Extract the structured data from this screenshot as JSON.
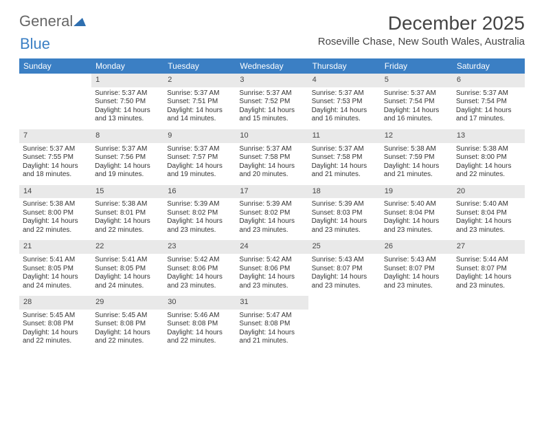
{
  "brand": {
    "part1": "General",
    "part2": "Blue",
    "triangle_color": "#2f6fb0"
  },
  "title": "December 2025",
  "location": "Roseville Chase, New South Wales, Australia",
  "colors": {
    "header_bg": "#3b7fc4",
    "header_fg": "#ffffff",
    "daynum_bg": "#e9e9e9"
  },
  "weekdays": [
    "Sunday",
    "Monday",
    "Tuesday",
    "Wednesday",
    "Thursday",
    "Friday",
    "Saturday"
  ],
  "weeks": [
    [
      {
        "n": "",
        "lines": []
      },
      {
        "n": "1",
        "lines": [
          "Sunrise: 5:37 AM",
          "Sunset: 7:50 PM",
          "Daylight: 14 hours",
          "and 13 minutes."
        ]
      },
      {
        "n": "2",
        "lines": [
          "Sunrise: 5:37 AM",
          "Sunset: 7:51 PM",
          "Daylight: 14 hours",
          "and 14 minutes."
        ]
      },
      {
        "n": "3",
        "lines": [
          "Sunrise: 5:37 AM",
          "Sunset: 7:52 PM",
          "Daylight: 14 hours",
          "and 15 minutes."
        ]
      },
      {
        "n": "4",
        "lines": [
          "Sunrise: 5:37 AM",
          "Sunset: 7:53 PM",
          "Daylight: 14 hours",
          "and 16 minutes."
        ]
      },
      {
        "n": "5",
        "lines": [
          "Sunrise: 5:37 AM",
          "Sunset: 7:54 PM",
          "Daylight: 14 hours",
          "and 16 minutes."
        ]
      },
      {
        "n": "6",
        "lines": [
          "Sunrise: 5:37 AM",
          "Sunset: 7:54 PM",
          "Daylight: 14 hours",
          "and 17 minutes."
        ]
      }
    ],
    [
      {
        "n": "7",
        "lines": [
          "Sunrise: 5:37 AM",
          "Sunset: 7:55 PM",
          "Daylight: 14 hours",
          "and 18 minutes."
        ]
      },
      {
        "n": "8",
        "lines": [
          "Sunrise: 5:37 AM",
          "Sunset: 7:56 PM",
          "Daylight: 14 hours",
          "and 19 minutes."
        ]
      },
      {
        "n": "9",
        "lines": [
          "Sunrise: 5:37 AM",
          "Sunset: 7:57 PM",
          "Daylight: 14 hours",
          "and 19 minutes."
        ]
      },
      {
        "n": "10",
        "lines": [
          "Sunrise: 5:37 AM",
          "Sunset: 7:58 PM",
          "Daylight: 14 hours",
          "and 20 minutes."
        ]
      },
      {
        "n": "11",
        "lines": [
          "Sunrise: 5:37 AM",
          "Sunset: 7:58 PM",
          "Daylight: 14 hours",
          "and 21 minutes."
        ]
      },
      {
        "n": "12",
        "lines": [
          "Sunrise: 5:38 AM",
          "Sunset: 7:59 PM",
          "Daylight: 14 hours",
          "and 21 minutes."
        ]
      },
      {
        "n": "13",
        "lines": [
          "Sunrise: 5:38 AM",
          "Sunset: 8:00 PM",
          "Daylight: 14 hours",
          "and 22 minutes."
        ]
      }
    ],
    [
      {
        "n": "14",
        "lines": [
          "Sunrise: 5:38 AM",
          "Sunset: 8:00 PM",
          "Daylight: 14 hours",
          "and 22 minutes."
        ]
      },
      {
        "n": "15",
        "lines": [
          "Sunrise: 5:38 AM",
          "Sunset: 8:01 PM",
          "Daylight: 14 hours",
          "and 22 minutes."
        ]
      },
      {
        "n": "16",
        "lines": [
          "Sunrise: 5:39 AM",
          "Sunset: 8:02 PM",
          "Daylight: 14 hours",
          "and 23 minutes."
        ]
      },
      {
        "n": "17",
        "lines": [
          "Sunrise: 5:39 AM",
          "Sunset: 8:02 PM",
          "Daylight: 14 hours",
          "and 23 minutes."
        ]
      },
      {
        "n": "18",
        "lines": [
          "Sunrise: 5:39 AM",
          "Sunset: 8:03 PM",
          "Daylight: 14 hours",
          "and 23 minutes."
        ]
      },
      {
        "n": "19",
        "lines": [
          "Sunrise: 5:40 AM",
          "Sunset: 8:04 PM",
          "Daylight: 14 hours",
          "and 23 minutes."
        ]
      },
      {
        "n": "20",
        "lines": [
          "Sunrise: 5:40 AM",
          "Sunset: 8:04 PM",
          "Daylight: 14 hours",
          "and 23 minutes."
        ]
      }
    ],
    [
      {
        "n": "21",
        "lines": [
          "Sunrise: 5:41 AM",
          "Sunset: 8:05 PM",
          "Daylight: 14 hours",
          "and 24 minutes."
        ]
      },
      {
        "n": "22",
        "lines": [
          "Sunrise: 5:41 AM",
          "Sunset: 8:05 PM",
          "Daylight: 14 hours",
          "and 24 minutes."
        ]
      },
      {
        "n": "23",
        "lines": [
          "Sunrise: 5:42 AM",
          "Sunset: 8:06 PM",
          "Daylight: 14 hours",
          "and 23 minutes."
        ]
      },
      {
        "n": "24",
        "lines": [
          "Sunrise: 5:42 AM",
          "Sunset: 8:06 PM",
          "Daylight: 14 hours",
          "and 23 minutes."
        ]
      },
      {
        "n": "25",
        "lines": [
          "Sunrise: 5:43 AM",
          "Sunset: 8:07 PM",
          "Daylight: 14 hours",
          "and 23 minutes."
        ]
      },
      {
        "n": "26",
        "lines": [
          "Sunrise: 5:43 AM",
          "Sunset: 8:07 PM",
          "Daylight: 14 hours",
          "and 23 minutes."
        ]
      },
      {
        "n": "27",
        "lines": [
          "Sunrise: 5:44 AM",
          "Sunset: 8:07 PM",
          "Daylight: 14 hours",
          "and 23 minutes."
        ]
      }
    ],
    [
      {
        "n": "28",
        "lines": [
          "Sunrise: 5:45 AM",
          "Sunset: 8:08 PM",
          "Daylight: 14 hours",
          "and 22 minutes."
        ]
      },
      {
        "n": "29",
        "lines": [
          "Sunrise: 5:45 AM",
          "Sunset: 8:08 PM",
          "Daylight: 14 hours",
          "and 22 minutes."
        ]
      },
      {
        "n": "30",
        "lines": [
          "Sunrise: 5:46 AM",
          "Sunset: 8:08 PM",
          "Daylight: 14 hours",
          "and 22 minutes."
        ]
      },
      {
        "n": "31",
        "lines": [
          "Sunrise: 5:47 AM",
          "Sunset: 8:08 PM",
          "Daylight: 14 hours",
          "and 21 minutes."
        ]
      },
      {
        "n": "",
        "lines": []
      },
      {
        "n": "",
        "lines": []
      },
      {
        "n": "",
        "lines": []
      }
    ]
  ]
}
